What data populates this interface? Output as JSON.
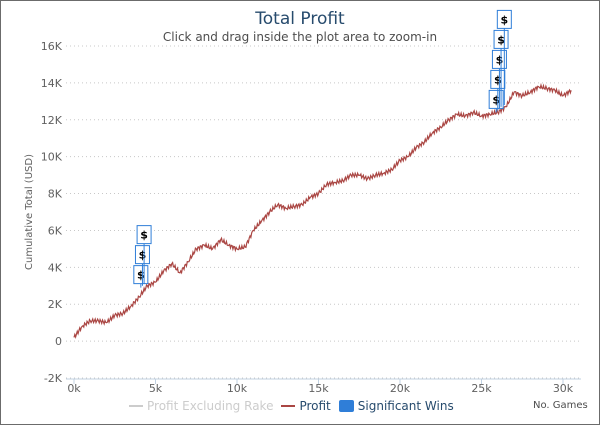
{
  "chart_data": {
    "type": "line",
    "title": "Total Profit",
    "subtitle": "Click and drag inside the plot area to zoom-in",
    "xlabel": "No. Games",
    "ylabel": "Cumulative Total (USD)",
    "xlim": [
      0,
      31000
    ],
    "ylim": [
      -2000,
      16000
    ],
    "x_ticks": [
      0,
      5000,
      10000,
      15000,
      20000,
      25000,
      30000
    ],
    "x_tick_labels": [
      "0k",
      "5k",
      "10k",
      "15k",
      "20k",
      "25k",
      "30k"
    ],
    "y_ticks": [
      -2000,
      0,
      2000,
      4000,
      6000,
      8000,
      10000,
      12000,
      14000,
      16000
    ],
    "y_tick_labels": [
      "-2K",
      "0",
      "2K",
      "4K",
      "6K",
      "8K",
      "10K",
      "12K",
      "14K",
      "16K"
    ],
    "grid": true,
    "legend_placement": "bottom",
    "series": [
      {
        "name": "Profit Excluding Rake",
        "color": "#cccccc",
        "hidden": true,
        "x": [],
        "y": []
      },
      {
        "name": "Profit",
        "color": "#aa4643",
        "x": [
          0,
          500,
          1000,
          1500,
          2000,
          2500,
          3000,
          3500,
          4000,
          4500,
          5000,
          5500,
          6000,
          6500,
          7000,
          7500,
          8000,
          8500,
          9000,
          9500,
          10000,
          10500,
          11000,
          11500,
          12000,
          12500,
          13000,
          13500,
          14000,
          14500,
          15000,
          15500,
          16000,
          16500,
          17000,
          17500,
          18000,
          18500,
          19000,
          19500,
          20000,
          20500,
          21000,
          21500,
          22000,
          22500,
          23000,
          23500,
          24000,
          24500,
          25000,
          25500,
          26000,
          26500,
          27000,
          27500,
          28000,
          28500,
          29000,
          29500,
          30000,
          30500
        ],
        "y": [
          200,
          800,
          1100,
          1100,
          1000,
          1400,
          1500,
          1900,
          2400,
          3000,
          3200,
          3800,
          4200,
          3700,
          4300,
          5000,
          5200,
          5000,
          5500,
          5200,
          5000,
          5100,
          6000,
          6500,
          7000,
          7400,
          7200,
          7300,
          7400,
          7800,
          8000,
          8500,
          8600,
          8700,
          9000,
          9000,
          8800,
          9000,
          9100,
          9300,
          9800,
          10000,
          10500,
          10800,
          11300,
          11600,
          12000,
          12300,
          12200,
          12400,
          12200,
          12300,
          12400,
          12700,
          13500,
          13300,
          13500,
          13800,
          13700,
          13600,
          13300,
          13600
        ]
      }
    ],
    "flags": {
      "name": "Significant Wins",
      "color": "#2f7ed8",
      "symbol": "$",
      "points": [
        {
          "x": 4100,
          "y": 2900
        },
        {
          "x": 4200,
          "y": 3000
        },
        {
          "x": 4300,
          "y": 3100
        },
        {
          "x": 25900,
          "y": 12400
        },
        {
          "x": 26000,
          "y": 12500
        },
        {
          "x": 26100,
          "y": 12600
        },
        {
          "x": 26200,
          "y": 12700
        },
        {
          "x": 26400,
          "y": 12800
        }
      ]
    }
  }
}
